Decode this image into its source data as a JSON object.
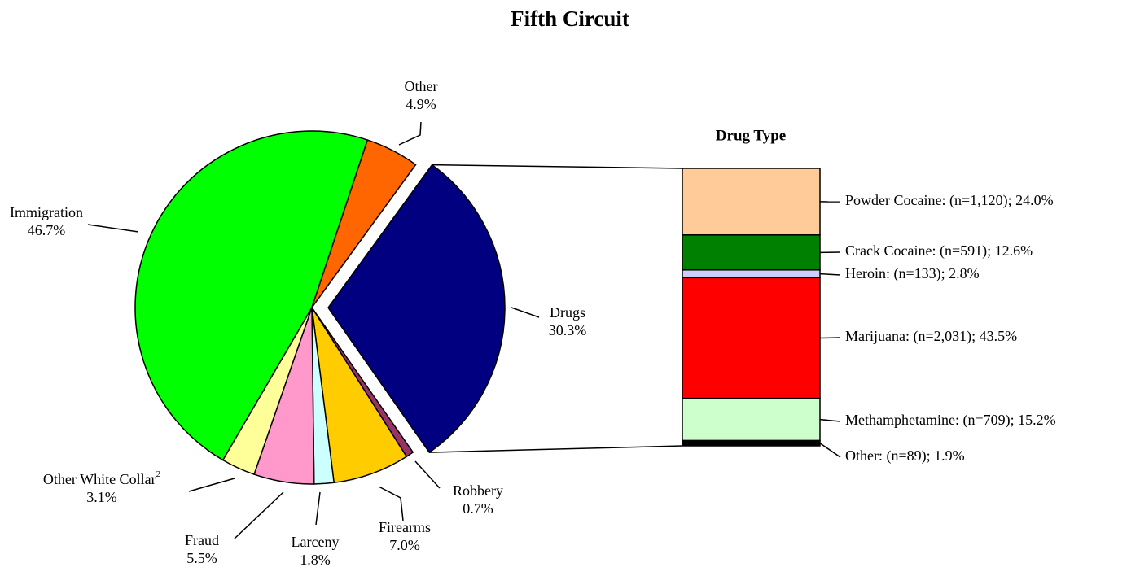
{
  "chart_data": [
    {
      "type": "pie",
      "title": "Fifth Circuit",
      "categories": [
        "Drugs",
        "Robbery",
        "Firearms",
        "Larceny",
        "Fraud",
        "Other White Collar",
        "Immigration",
        "Other"
      ],
      "category_notes": [
        null,
        null,
        null,
        null,
        null,
        "2",
        null,
        null
      ],
      "values": [
        30.3,
        0.7,
        7.0,
        1.8,
        5.5,
        3.1,
        46.7,
        4.9
      ],
      "value_labels": [
        "30.3%",
        "0.7%",
        "7.0%",
        "1.8%",
        "5.5%",
        "3.1%",
        "46.7%",
        "4.9%"
      ],
      "colors": [
        "#000080",
        "#993366",
        "#ffcc00",
        "#ccffff",
        "#ff99cc",
        "#ffff99",
        "#00ff00",
        "#ff6600"
      ]
    },
    {
      "type": "stacked_bar",
      "title": "Drug Type",
      "values": [
        24.0,
        12.6,
        2.8,
        43.5,
        15.2,
        1.9
      ],
      "value_labels": [
        "Powder Cocaine: (n=1,120); 24.0%",
        "Crack Cocaine: (n=591); 12.6%",
        "Heroin: (n=133); 2.8%",
        "Marijuana: (n=2,031); 43.5%",
        "Methamphetamine: (n=709); 15.2%",
        "Other: (n=89); 1.9%"
      ],
      "colors": [
        "#ffcc99",
        "#008000",
        "#ccccff",
        "#ff0000",
        "#ccffcc",
        "#000000"
      ]
    }
  ]
}
